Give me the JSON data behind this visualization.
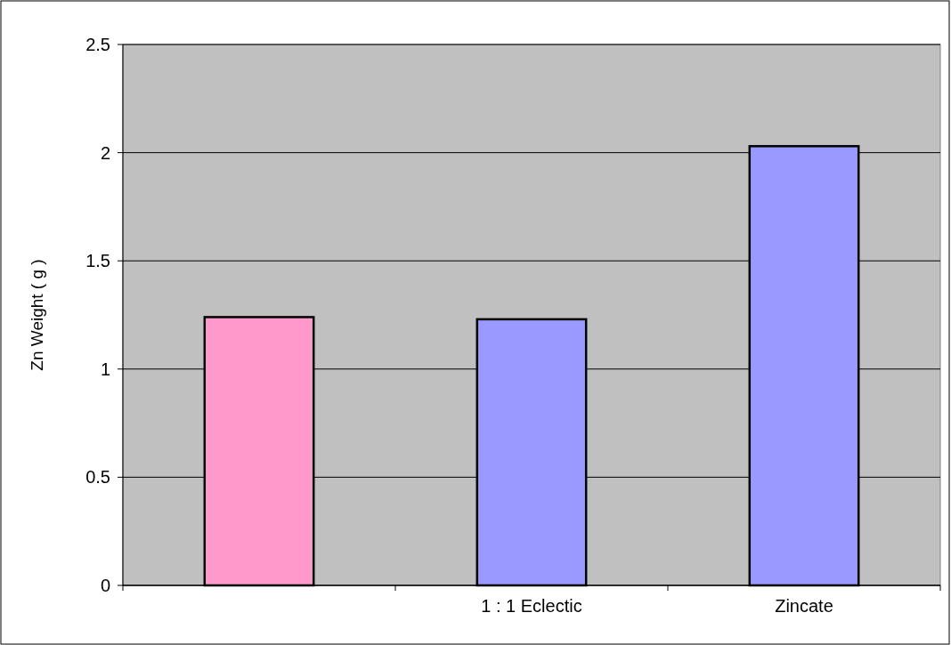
{
  "chart_data": {
    "type": "bar",
    "ylabel": "Zn Weight ( g )",
    "categories": [
      null,
      "1 : 1 Eclectic",
      "Zincate"
    ],
    "values": [
      1.24,
      1.23,
      2.03
    ],
    "colors": [
      "#ff99cc",
      "#9999ff",
      "#9999ff"
    ],
    "ylim": [
      0,
      2.5
    ],
    "yticks": [
      0,
      0.5,
      1,
      1.5,
      2,
      2.5
    ],
    "grid": "y"
  }
}
